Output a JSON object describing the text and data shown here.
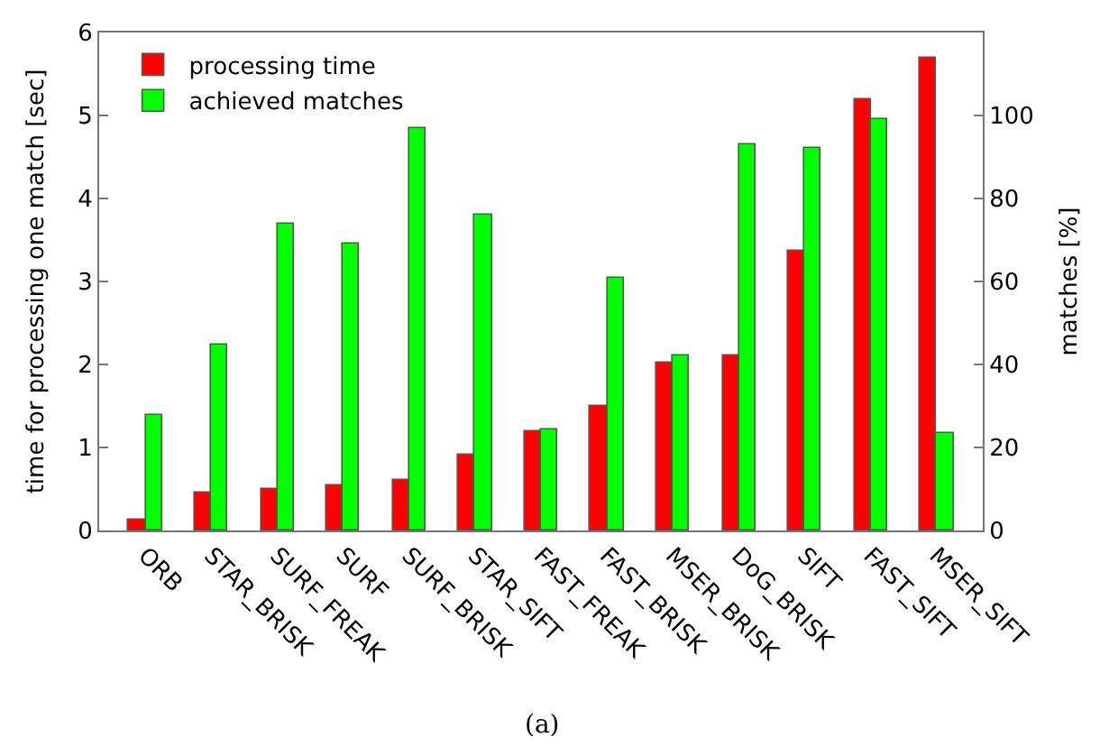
{
  "chart_data": {
    "type": "bar",
    "categories": [
      "ORB",
      "STAR_BRISK",
      "SURF_FREAK",
      "SURF",
      "SURF_BRISK",
      "STAR_SIFT",
      "FAST_FREAK",
      "FAST_BRISK",
      "MSER_BRISK",
      "DoG_BRISK",
      "SIFT",
      "FAST_SIFT",
      "MSER_SIFT"
    ],
    "series": [
      {
        "name": "processing time",
        "color": "#ff0000",
        "values": [
          0.12,
          0.45,
          0.5,
          0.55,
          0.6,
          0.92,
          1.2,
          1.5,
          2.02,
          2.1,
          3.38,
          5.2,
          5.7
        ]
      },
      {
        "name": "achieved matches",
        "color": "#00ff00",
        "axis": "y2",
        "values": [
          28,
          45,
          74,
          69,
          97,
          76,
          24.5,
          61,
          42,
          93,
          92,
          99,
          23.6
        ]
      }
    ],
    "ylabel": "time for processing one match [sec]",
    "y2label": "matches [%]",
    "ylim": [
      0,
      6
    ],
    "yticks": [
      0,
      1,
      2,
      3,
      4,
      5,
      6
    ],
    "y2lim": [
      0,
      120
    ],
    "y2ticks": [
      0,
      20,
      40,
      60,
      80,
      100
    ],
    "annotations": [
      "(a)"
    ],
    "legend": "top left"
  }
}
